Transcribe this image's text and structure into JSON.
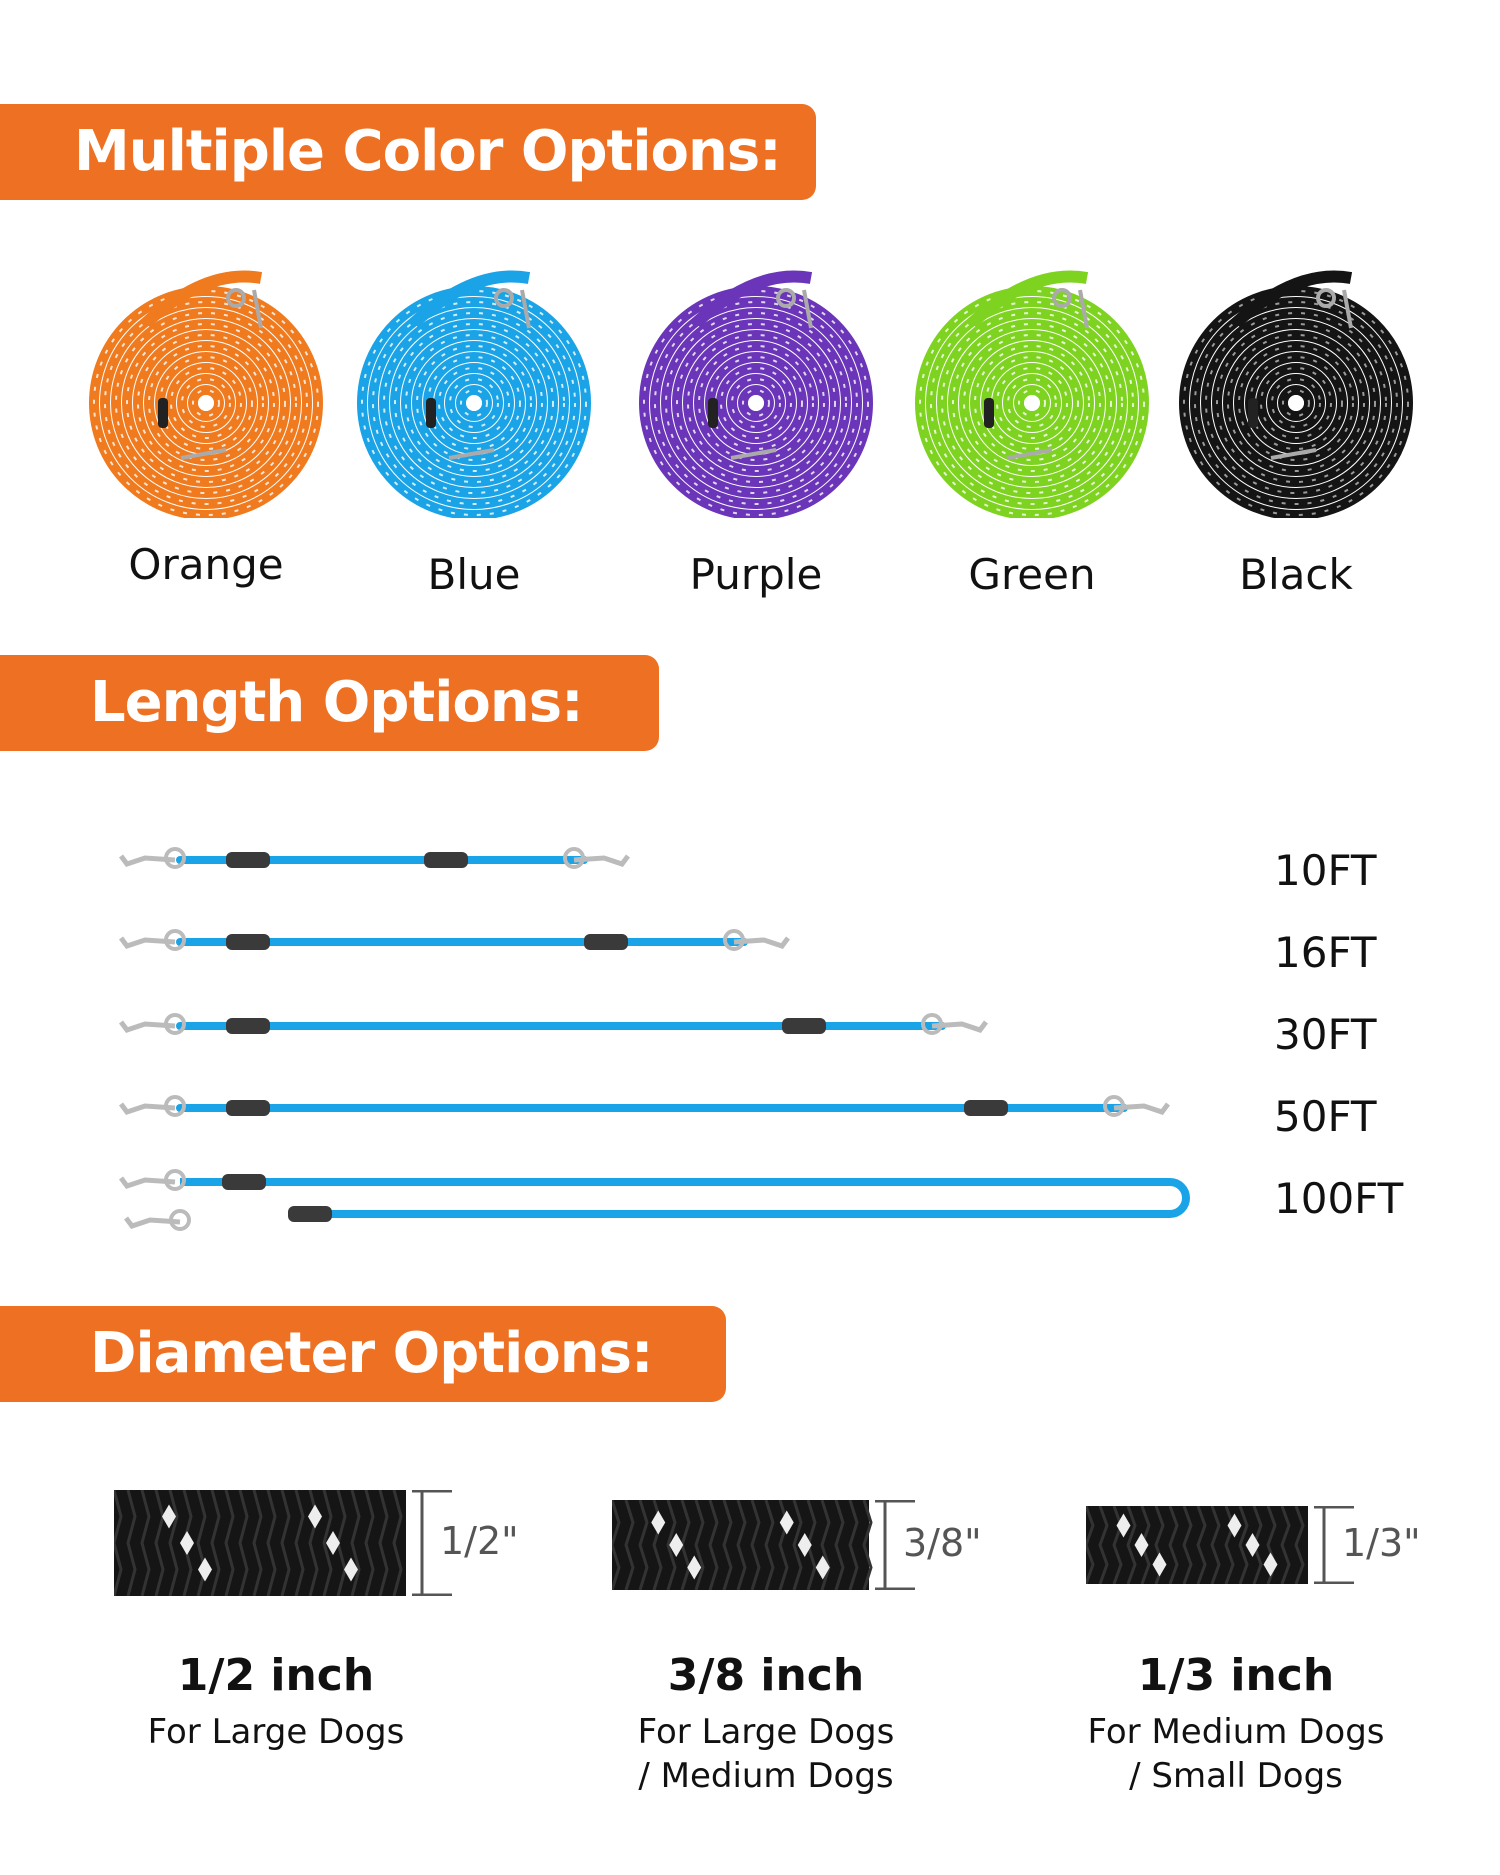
{
  "sections": {
    "colors_title": "Multiple Color Options:",
    "length_title": "Length Options:",
    "diameter_title": "Diameter Options:"
  },
  "accent_color": "#ee7022",
  "colors": [
    {
      "label": "Orange",
      "hex": "#f07a1e"
    },
    {
      "label": "Blue",
      "hex": "#1aa3e6"
    },
    {
      "label": "Purple",
      "hex": "#6a35b8"
    },
    {
      "label": "Green",
      "hex": "#7ed321"
    },
    {
      "label": "Black",
      "hex": "#141414"
    }
  ],
  "lengths": [
    {
      "label": "10FT",
      "feet": 10
    },
    {
      "label": "16FT",
      "feet": 16
    },
    {
      "label": "30FT",
      "feet": 30
    },
    {
      "label": "50FT",
      "feet": 50
    },
    {
      "label": "100FT",
      "feet": 100
    }
  ],
  "diameters": [
    {
      "dim": "1/2\"",
      "title": "1/2 inch",
      "sub1": "For Large Dogs",
      "sub2": ""
    },
    {
      "dim": "3/8\"",
      "title": "3/8 inch",
      "sub1": "For Large Dogs",
      "sub2": "/ Medium Dogs"
    },
    {
      "dim": "1/3\"",
      "title": "1/3 inch",
      "sub1": "For Medium Dogs",
      "sub2": "/ Small Dogs"
    }
  ]
}
